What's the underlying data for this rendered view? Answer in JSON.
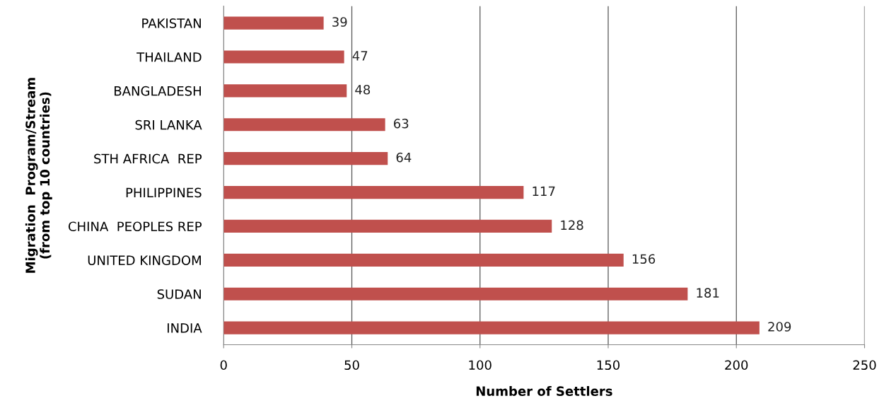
{
  "chart_data": {
    "type": "bar",
    "orientation": "horizontal",
    "categories": [
      "PAKISTAN",
      "THAILAND",
      "BANGLADESH",
      "SRI LANKA",
      "STH AFRICA  REP",
      "PHILIPPINES",
      "CHINA  PEOPLES REP",
      "UNITED KINGDOM",
      "SUDAN",
      "INDIA"
    ],
    "values": [
      39,
      47,
      48,
      63,
      64,
      117,
      128,
      156,
      181,
      209
    ],
    "color": "#c0504d",
    "xlabel": "Number of Settlers",
    "ylabel": "Migration  Program/Stream\n(from top 10 countries)",
    "xlim": [
      0,
      250
    ],
    "xticks": [
      0,
      50,
      100,
      150,
      200,
      250
    ],
    "grid": "x",
    "data_labels": true
  }
}
